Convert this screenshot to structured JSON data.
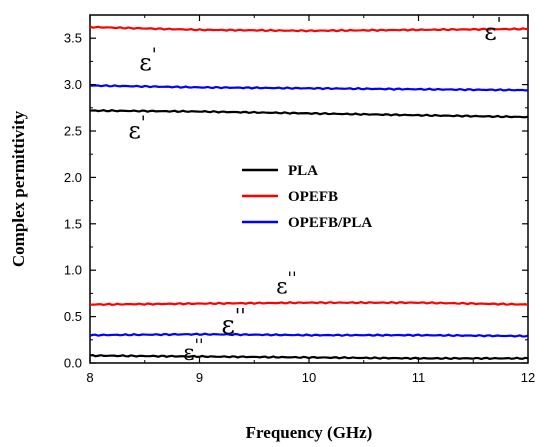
{
  "chart_data": {
    "type": "line",
    "title": "",
    "xlabel": "Frequency (GHz)",
    "ylabel": "Complex permittivity",
    "xlim": [
      8,
      12
    ],
    "ylim": [
      0,
      3.75
    ],
    "xticks": [
      "8",
      "9",
      "10",
      "11",
      "12"
    ],
    "yticks": [
      "0.0",
      "0.5",
      "1.0",
      "1.5",
      "2.0",
      "2.5",
      "3.0",
      "3.5"
    ],
    "grid": false,
    "legend_position": "center-right",
    "series": [
      {
        "name": "PLA",
        "color": "#000000",
        "component": "real",
        "x": [
          8,
          9,
          10,
          11,
          12
        ],
        "y": [
          2.72,
          2.71,
          2.69,
          2.67,
          2.65
        ]
      },
      {
        "name": "OPEFB",
        "color": "#ff0000",
        "component": "real",
        "x": [
          8,
          9,
          10,
          11,
          12
        ],
        "y": [
          3.62,
          3.59,
          3.58,
          3.59,
          3.6
        ]
      },
      {
        "name": "OPEFB/PLA",
        "color": "#0000ff",
        "component": "real",
        "x": [
          8,
          9,
          10,
          11,
          12
        ],
        "y": [
          2.99,
          2.97,
          2.96,
          2.95,
          2.94
        ]
      },
      {
        "name": "PLA",
        "color": "#000000",
        "component": "imaginary",
        "x": [
          8,
          9,
          10,
          11,
          12
        ],
        "y": [
          0.08,
          0.07,
          0.06,
          0.05,
          0.05
        ]
      },
      {
        "name": "OPEFB",
        "color": "#ff0000",
        "component": "imaginary",
        "x": [
          8,
          9,
          10,
          11,
          12
        ],
        "y": [
          0.63,
          0.64,
          0.65,
          0.65,
          0.63
        ]
      },
      {
        "name": "OPEFB/PLA",
        "color": "#0000ff",
        "component": "imaginary",
        "x": [
          8,
          9,
          10,
          11,
          12
        ],
        "y": [
          0.3,
          0.31,
          0.3,
          0.3,
          0.29
        ]
      }
    ],
    "legend": [
      {
        "label": "PLA",
        "color": "#000000"
      },
      {
        "label": "OPEFB",
        "color": "#ff0000"
      },
      {
        "label": "OPEFB/PLA",
        "color": "#0000ff"
      }
    ],
    "annotations": [
      {
        "base": "ε",
        "primes": "'",
        "x": 8.45,
        "y": 3.15
      },
      {
        "base": "ε",
        "primes": "'",
        "x": 11.6,
        "y": 3.48
      },
      {
        "base": "ε",
        "primes": "'",
        "x": 8.35,
        "y": 2.42
      },
      {
        "base": "ε",
        "primes": "''",
        "x": 9.7,
        "y": 0.75
      },
      {
        "base": "ε",
        "primes": "''",
        "x": 9.2,
        "y": 0.32
      },
      {
        "base": "ε",
        "primes": "''",
        "x": 8.85,
        "y": 0.03
      }
    ]
  }
}
